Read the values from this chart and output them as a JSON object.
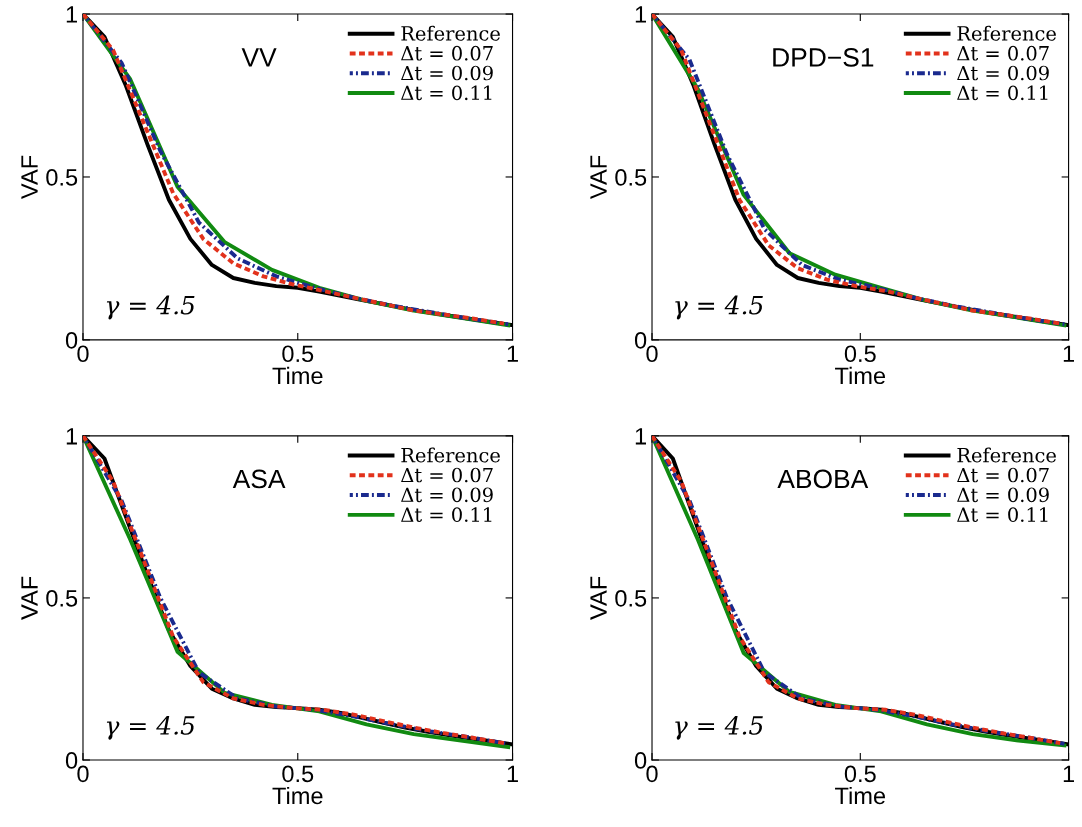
{
  "chart_data": [
    {
      "type": "line",
      "title": "VV",
      "xlabel": "Time",
      "ylabel": "VAF",
      "xlim": [
        0,
        1
      ],
      "ylim": [
        0,
        1
      ],
      "xticks": [
        0,
        0.5,
        1
      ],
      "yticks": [
        0,
        0.5,
        1
      ],
      "legend": "top right",
      "grid": false,
      "annotations": [
        "γ = 4.5"
      ],
      "series": [
        {
          "name": "Reference",
          "color": "#000000",
          "line_style": "solid",
          "x": [
            0,
            0.05,
            0.1,
            0.15,
            0.2,
            0.25,
            0.3,
            0.35,
            0.4,
            0.45,
            0.5,
            0.55,
            0.6,
            0.65,
            0.7,
            0.75,
            0.8,
            0.85,
            0.9,
            0.95,
            1.0
          ],
          "values": [
            1,
            0.93,
            0.78,
            0.6,
            0.43,
            0.31,
            0.23,
            0.19,
            0.175,
            0.165,
            0.16,
            0.148,
            0.135,
            0.122,
            0.11,
            0.097,
            0.085,
            0.075,
            0.065,
            0.055,
            0.045
          ]
        },
        {
          "name": "Δt = 0.07",
          "color": "#e2321c",
          "line_style": "dashed",
          "x": [
            0,
            0.07,
            0.14,
            0.21,
            0.28,
            0.35,
            0.42,
            0.49,
            0.56,
            0.63,
            0.7,
            0.77,
            0.84,
            0.91,
            0.98
          ],
          "values": [
            1,
            0.89,
            0.67,
            0.45,
            0.31,
            0.235,
            0.195,
            0.17,
            0.15,
            0.13,
            0.11,
            0.09,
            0.078,
            0.065,
            0.05
          ]
        },
        {
          "name": "Δt = 0.09",
          "color": "#1a2a8e",
          "line_style": "dashdot",
          "x": [
            0,
            0.09,
            0.18,
            0.27,
            0.36,
            0.45,
            0.54,
            0.63,
            0.72,
            0.81,
            0.9,
            0.99
          ],
          "values": [
            1,
            0.85,
            0.58,
            0.36,
            0.25,
            0.195,
            0.16,
            0.13,
            0.105,
            0.085,
            0.065,
            0.048
          ]
        },
        {
          "name": "Δt = 0.11",
          "color": "#118a11",
          "line_style": "solid",
          "x": [
            0,
            0.11,
            0.22,
            0.33,
            0.44,
            0.55,
            0.66,
            0.77,
            0.88,
            0.99
          ],
          "values": [
            1,
            0.8,
            0.47,
            0.3,
            0.215,
            0.16,
            0.12,
            0.09,
            0.068,
            0.045
          ]
        }
      ]
    },
    {
      "type": "line",
      "title": "DPD−S1",
      "xlabel": "Time",
      "ylabel": "VAF",
      "xlim": [
        0,
        1
      ],
      "ylim": [
        0,
        1
      ],
      "xticks": [
        0,
        0.5,
        1
      ],
      "yticks": [
        0,
        0.5,
        1
      ],
      "legend": "top right",
      "grid": false,
      "annotations": [
        "γ = 4.5"
      ],
      "series": [
        {
          "name": "Reference",
          "color": "#000000",
          "line_style": "solid",
          "x": [
            0,
            0.05,
            0.1,
            0.15,
            0.2,
            0.25,
            0.3,
            0.35,
            0.4,
            0.45,
            0.5,
            0.55,
            0.6,
            0.65,
            0.7,
            0.75,
            0.8,
            0.85,
            0.9,
            0.95,
            1.0
          ],
          "values": [
            1,
            0.93,
            0.78,
            0.6,
            0.43,
            0.31,
            0.23,
            0.19,
            0.175,
            0.165,
            0.16,
            0.148,
            0.135,
            0.122,
            0.11,
            0.097,
            0.085,
            0.075,
            0.065,
            0.055,
            0.045
          ]
        },
        {
          "name": "Δt = 0.07",
          "color": "#e2321c",
          "line_style": "dashed",
          "x": [
            0,
            0.07,
            0.14,
            0.21,
            0.28,
            0.35,
            0.42,
            0.49,
            0.56,
            0.63,
            0.7,
            0.77,
            0.84,
            0.91,
            0.98
          ],
          "values": [
            1,
            0.89,
            0.66,
            0.43,
            0.29,
            0.22,
            0.185,
            0.165,
            0.15,
            0.13,
            0.11,
            0.09,
            0.078,
            0.065,
            0.05
          ]
        },
        {
          "name": "Δt = 0.09",
          "color": "#1a2a8e",
          "line_style": "dashdot",
          "x": [
            0,
            0.09,
            0.18,
            0.27,
            0.36,
            0.45,
            0.54,
            0.63,
            0.72,
            0.81,
            0.9,
            0.99
          ],
          "values": [
            1,
            0.86,
            0.57,
            0.34,
            0.23,
            0.185,
            0.16,
            0.13,
            0.105,
            0.085,
            0.065,
            0.048
          ]
        },
        {
          "name": "Δt = 0.11",
          "color": "#118a11",
          "line_style": "solid",
          "x": [
            0,
            0.11,
            0.22,
            0.33,
            0.44,
            0.55,
            0.66,
            0.77,
            0.88,
            0.99
          ],
          "values": [
            1,
            0.77,
            0.445,
            0.266,
            0.2,
            0.16,
            0.12,
            0.09,
            0.068,
            0.045
          ]
        }
      ]
    },
    {
      "type": "line",
      "title": "ASA",
      "xlabel": "Time",
      "ylabel": "VAF",
      "xlim": [
        0,
        1
      ],
      "ylim": [
        0,
        1
      ],
      "xticks": [
        0,
        0.5,
        1
      ],
      "yticks": [
        0,
        0.5,
        1
      ],
      "legend": "top right",
      "grid": false,
      "annotations": [
        "γ = 4.5"
      ],
      "series": [
        {
          "name": "Reference",
          "color": "#000000",
          "line_style": "solid",
          "x": [
            0,
            0.05,
            0.1,
            0.15,
            0.2,
            0.25,
            0.3,
            0.35,
            0.4,
            0.45,
            0.5,
            0.55,
            0.6,
            0.65,
            0.7,
            0.75,
            0.8,
            0.85,
            0.9,
            0.95,
            1.0
          ],
          "values": [
            1,
            0.93,
            0.75,
            0.57,
            0.4,
            0.29,
            0.22,
            0.19,
            0.17,
            0.163,
            0.16,
            0.155,
            0.145,
            0.13,
            0.115,
            0.1,
            0.088,
            0.077,
            0.067,
            0.058,
            0.048
          ]
        },
        {
          "name": "Δt = 0.07",
          "color": "#e2321c",
          "line_style": "dashed",
          "x": [
            0,
            0.07,
            0.14,
            0.21,
            0.28,
            0.35,
            0.42,
            0.49,
            0.56,
            0.63,
            0.7,
            0.77,
            0.84,
            0.91,
            0.98
          ],
          "values": [
            1,
            0.86,
            0.62,
            0.38,
            0.24,
            0.19,
            0.17,
            0.16,
            0.155,
            0.14,
            0.12,
            0.1,
            0.083,
            0.068,
            0.052
          ]
        },
        {
          "name": "Δt = 0.09",
          "color": "#1a2a8e",
          "line_style": "dashdot",
          "x": [
            0,
            0.09,
            0.18,
            0.27,
            0.36,
            0.45,
            0.54,
            0.63,
            0.72,
            0.81,
            0.9,
            0.99
          ],
          "values": [
            1,
            0.8,
            0.5,
            0.27,
            0.19,
            0.165,
            0.155,
            0.135,
            0.11,
            0.088,
            0.07,
            0.05
          ]
        },
        {
          "name": "Δt = 0.11",
          "color": "#118a11",
          "line_style": "solid",
          "x": [
            0,
            0.11,
            0.22,
            0.33,
            0.44,
            0.55,
            0.66,
            0.77,
            0.88,
            0.99
          ],
          "values": [
            1,
            0.68,
            0.334,
            0.207,
            0.17,
            0.15,
            0.11,
            0.08,
            0.06,
            0.04
          ]
        }
      ]
    },
    {
      "type": "line",
      "title": "ABOBA",
      "xlabel": "Time",
      "ylabel": "VAF",
      "xlim": [
        0,
        1
      ],
      "ylim": [
        0,
        1
      ],
      "xticks": [
        0,
        0.5,
        1
      ],
      "yticks": [
        0,
        0.5,
        1
      ],
      "legend": "top right",
      "grid": false,
      "annotations": [
        "γ = 4.5"
      ],
      "series": [
        {
          "name": "Reference",
          "color": "#000000",
          "line_style": "solid",
          "x": [
            0,
            0.05,
            0.1,
            0.15,
            0.2,
            0.25,
            0.3,
            0.35,
            0.4,
            0.45,
            0.5,
            0.55,
            0.6,
            0.65,
            0.7,
            0.75,
            0.8,
            0.85,
            0.9,
            0.95,
            1.0
          ],
          "values": [
            1,
            0.93,
            0.75,
            0.57,
            0.4,
            0.29,
            0.22,
            0.19,
            0.17,
            0.163,
            0.16,
            0.155,
            0.145,
            0.13,
            0.115,
            0.1,
            0.088,
            0.077,
            0.067,
            0.058,
            0.048
          ]
        },
        {
          "name": "Δt = 0.07",
          "color": "#e2321c",
          "line_style": "dashed",
          "x": [
            0,
            0.07,
            0.14,
            0.21,
            0.28,
            0.35,
            0.42,
            0.49,
            0.56,
            0.63,
            0.7,
            0.77,
            0.84,
            0.91,
            0.98
          ],
          "values": [
            1,
            0.86,
            0.62,
            0.38,
            0.24,
            0.19,
            0.17,
            0.16,
            0.155,
            0.14,
            0.12,
            0.1,
            0.083,
            0.068,
            0.052
          ]
        },
        {
          "name": "Δt = 0.09",
          "color": "#1a2a8e",
          "line_style": "dashdot",
          "x": [
            0,
            0.09,
            0.18,
            0.27,
            0.36,
            0.45,
            0.54,
            0.63,
            0.72,
            0.81,
            0.9,
            0.99
          ],
          "values": [
            1,
            0.8,
            0.5,
            0.27,
            0.19,
            0.165,
            0.155,
            0.135,
            0.11,
            0.088,
            0.07,
            0.05
          ]
        },
        {
          "name": "Δt = 0.11",
          "color": "#118a11",
          "line_style": "solid",
          "x": [
            0,
            0.11,
            0.22,
            0.33,
            0.44,
            0.55,
            0.66,
            0.77,
            0.88,
            0.99
          ],
          "values": [
            1,
            0.68,
            0.33,
            0.21,
            0.17,
            0.15,
            0.11,
            0.08,
            0.06,
            0.045
          ]
        }
      ]
    }
  ]
}
